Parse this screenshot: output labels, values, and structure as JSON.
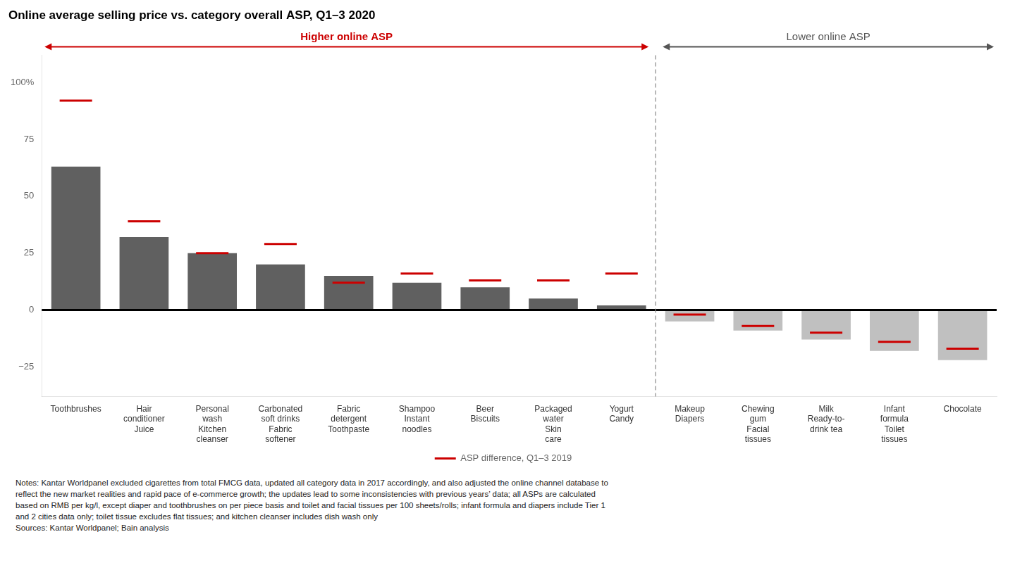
{
  "chart_data": {
    "type": "bar",
    "title": "Online average selling price vs. category overall ASP, Q1–3 2020",
    "categories": [
      "Toothbrushes",
      "Hair\nconditioner\nJuice",
      "Personal\nwash\nKitchen\ncleanser",
      "Carbonated\nsoft drinks\nFabric\nsoftener",
      "Fabric\ndetergent\nToothpaste",
      "Shampoo\nInstant\nnoodles",
      "Beer\nBiscuits",
      "Packaged\nwater\nSkin\ncare",
      "Yogurt\nCandy",
      "Makeup\nDiapers",
      "Chewing\ngum\nFacial\ntissues",
      "Milk\nReady-to-\ndrink tea",
      "Infant\nformula\nToilet\ntissues",
      "Chocolate"
    ],
    "series": [
      {
        "type": "bar",
        "colors": [
          "#606060",
          "#606060",
          "#606060",
          "#606060",
          "#606060",
          "#606060",
          "#606060",
          "#606060",
          "#606060",
          "#c0c0c0",
          "#c0c0c0",
          "#c0c0c0",
          "#c0c0c0",
          "#c0c0c0"
        ],
        "values": [
          63,
          32,
          25,
          20,
          15,
          12,
          10,
          5,
          2,
          -5,
          -9,
          -13,
          -18,
          -22
        ]
      },
      {
        "name": "ASP difference, Q1–3 2019",
        "type": "line",
        "marker": "dash",
        "line_style": "none",
        "color": "#cc0000",
        "values": [
          92,
          39,
          25,
          29,
          12,
          16,
          13,
          13,
          16,
          -2,
          -7,
          -10,
          -14,
          -17
        ]
      }
    ],
    "ylim": [
      -38,
      112
    ],
    "yticks": [
      {
        "value": 100,
        "label": "100%"
      },
      75,
      50,
      25,
      0,
      {
        "value": -25,
        "label": "−25"
      }
    ],
    "grid": false,
    "legend": "bottom",
    "annotations": [
      {
        "text": "Higher online ASP",
        "color": "#cc0000"
      },
      {
        "text": "Lower online ASP",
        "color": "#555555"
      }
    ],
    "notes": [
      "Notes: Kantar Worldpanel excluded cigarettes from total FMCG data, updated all category data in 2017 accordingly, and also adjusted the online channel database to",
      "reflect the new market realities and rapid pace of e-commerce growth; the updates lead to some inconsistencies with previous years’ data; all ASPs are calculated",
      "based on RMB per kg/l, except diaper and toothbrushes on per piece basis and toilet and facial tissues per 100 sheets/rolls; infant formula and diapers include Tier 1",
      "and 2 cities data only; toilet tissue excludes flat tissues; and kitchen cleanser includes dish wash only",
      "Sources: Kantar Worldpanel; Bain analysis"
    ]
  }
}
